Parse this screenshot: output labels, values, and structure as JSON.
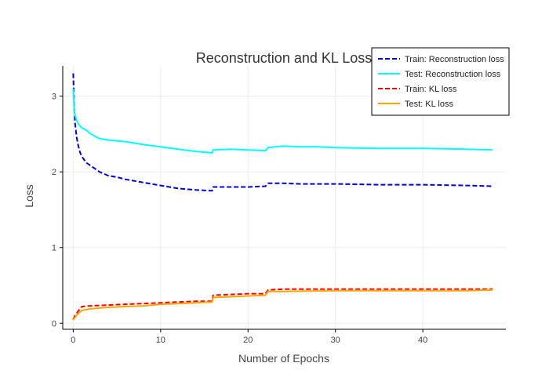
{
  "chart_data": {
    "type": "line",
    "title": "Reconstruction and KL Loss",
    "xlabel": "Number of Epochs",
    "ylabel": "Loss",
    "xlim": [
      -1.2,
      49.5
    ],
    "ylim": [
      -0.08,
      3.4
    ],
    "x_ticks": [
      0,
      10,
      20,
      30,
      40
    ],
    "y_ticks": [
      0,
      1,
      2,
      3
    ],
    "grid": true,
    "legend_position": "top-right",
    "series": [
      {
        "name": "Train: Reconstruction loss",
        "color": "#0000dd",
        "dash": "dashed",
        "x": [
          0,
          0.1,
          0.2,
          0.4,
          0.6,
          0.8,
          1,
          1.5,
          2,
          3,
          4,
          5,
          6,
          8,
          10,
          12,
          14,
          15.9,
          16,
          18,
          20,
          22,
          22.3,
          24,
          26,
          28,
          30,
          35,
          40,
          45,
          48
        ],
        "y": [
          3.3,
          2.9,
          2.65,
          2.45,
          2.33,
          2.25,
          2.2,
          2.12,
          2.08,
          2.0,
          1.95,
          1.93,
          1.9,
          1.86,
          1.82,
          1.78,
          1.76,
          1.75,
          1.8,
          1.8,
          1.8,
          1.81,
          1.85,
          1.85,
          1.84,
          1.84,
          1.84,
          1.83,
          1.83,
          1.82,
          1.81
        ]
      },
      {
        "name": "Test: Reconstruction loss",
        "color": "#00ffff",
        "dash": "solid",
        "x": [
          0,
          0.1,
          0.2,
          0.4,
          0.6,
          0.8,
          1,
          1.5,
          2,
          3,
          4,
          5,
          6,
          8,
          10,
          12,
          14,
          15.9,
          16,
          18,
          20,
          22,
          22.3,
          24,
          26,
          28,
          30,
          35,
          40,
          45,
          48
        ],
        "y": [
          3.1,
          2.85,
          2.75,
          2.68,
          2.63,
          2.6,
          2.58,
          2.55,
          2.5,
          2.44,
          2.42,
          2.41,
          2.4,
          2.36,
          2.33,
          2.3,
          2.27,
          2.25,
          2.29,
          2.3,
          2.29,
          2.28,
          2.32,
          2.34,
          2.33,
          2.33,
          2.32,
          2.31,
          2.31,
          2.3,
          2.29
        ]
      },
      {
        "name": "Train: KL loss",
        "color": "#ff0000",
        "dash": "dashed",
        "x": [
          0,
          0.2,
          0.5,
          1,
          2,
          4,
          6,
          8,
          10,
          12,
          14,
          15.9,
          16,
          18,
          20,
          22,
          22.3,
          24,
          30,
          35,
          40,
          45,
          48
        ],
        "y": [
          0.05,
          0.1,
          0.15,
          0.22,
          0.23,
          0.24,
          0.25,
          0.26,
          0.27,
          0.28,
          0.29,
          0.29,
          0.37,
          0.38,
          0.39,
          0.39,
          0.44,
          0.45,
          0.45,
          0.45,
          0.45,
          0.45,
          0.45
        ]
      },
      {
        "name": "Test: KL loss",
        "color": "#ffa500",
        "dash": "solid",
        "x": [
          0,
          0.2,
          0.5,
          1,
          2,
          4,
          6,
          8,
          10,
          12,
          14,
          15.9,
          16,
          18,
          20,
          22,
          22.3,
          24,
          30,
          35,
          40,
          45,
          48
        ],
        "y": [
          0.04,
          0.08,
          0.12,
          0.17,
          0.19,
          0.21,
          0.22,
          0.23,
          0.25,
          0.26,
          0.27,
          0.28,
          0.34,
          0.35,
          0.36,
          0.37,
          0.42,
          0.42,
          0.43,
          0.43,
          0.43,
          0.43,
          0.44
        ]
      }
    ]
  }
}
